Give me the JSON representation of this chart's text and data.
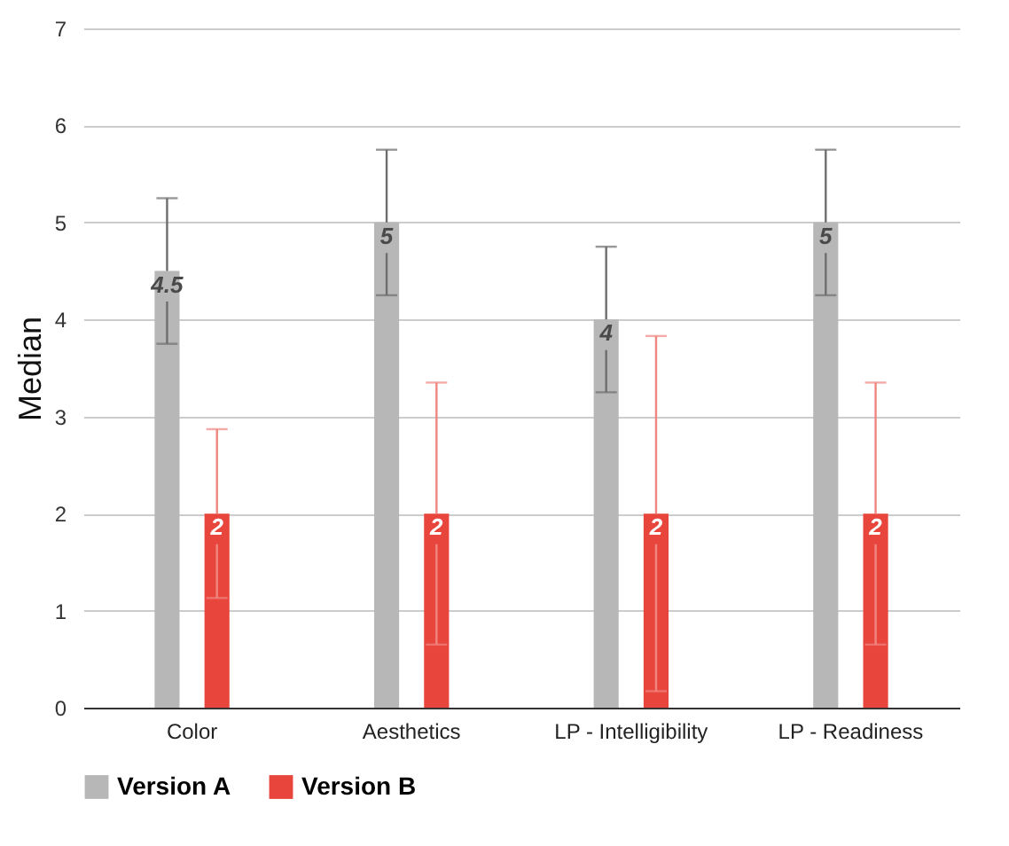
{
  "chart_data": {
    "type": "bar",
    "ylabel": "Median",
    "categories": [
      "Color",
      "Aesthetics",
      "LP - Intelligibility",
      "LP - Readiness"
    ],
    "series": [
      {
        "name": "Version A",
        "color": "#b7b7b7",
        "values": [
          4.5,
          5,
          4,
          5
        ],
        "errors": [
          0.75,
          0.75,
          0.75,
          0.75
        ]
      },
      {
        "name": "Version B",
        "color": "#e8453c",
        "values": [
          2,
          2,
          2,
          2
        ],
        "errors": [
          0.87,
          1.35,
          1.83,
          1.35
        ]
      }
    ],
    "ylim": [
      0,
      7
    ],
    "yticks": [
      0,
      1,
      2,
      3,
      4,
      5,
      6,
      7
    ],
    "grid": "y",
    "legend": "bottom",
    "data_labels": true
  }
}
